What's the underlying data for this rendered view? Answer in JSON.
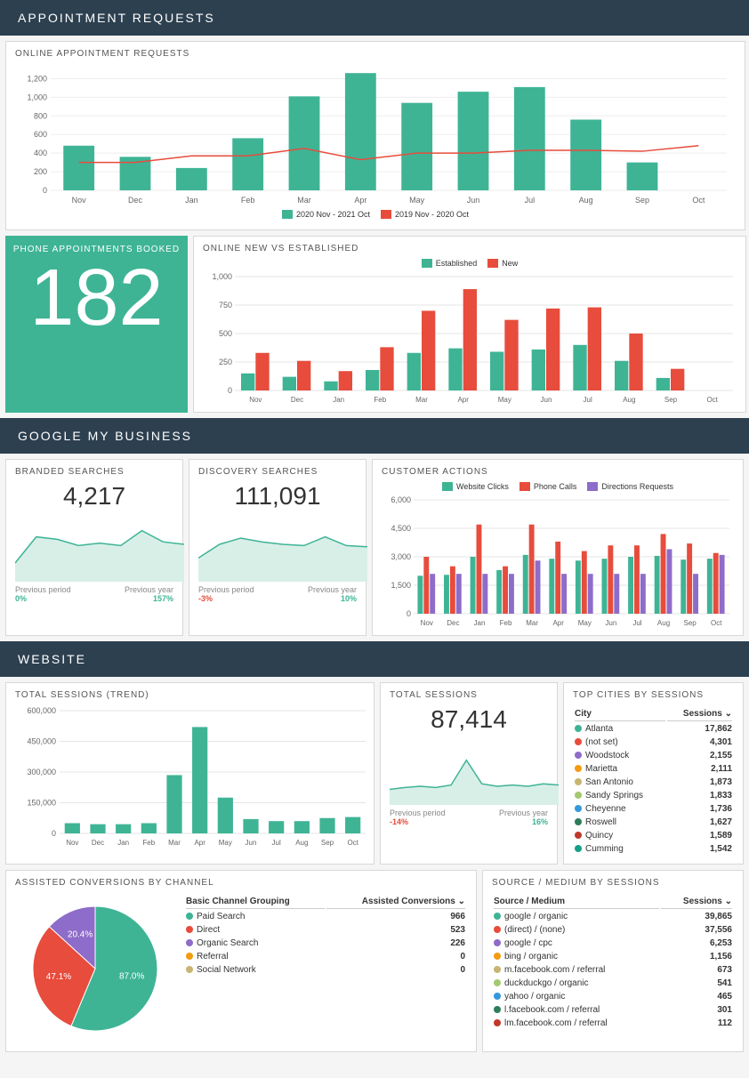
{
  "sections": {
    "appointments": "APPOINTMENT REQUESTS",
    "gmb": "GOOGLE MY BUSINESS",
    "website": "WEBSITE"
  },
  "online_requests": {
    "title": "ONLINE APPOINTMENT REQUESTS",
    "type": "bar+line",
    "categories": [
      "Nov",
      "Dec",
      "Jan",
      "Feb",
      "Mar",
      "Apr",
      "May",
      "Jun",
      "Jul",
      "Aug",
      "Sep",
      "Oct"
    ],
    "bars": [
      480,
      360,
      240,
      560,
      1010,
      1260,
      940,
      1060,
      1110,
      760,
      300,
      0
    ],
    "line": [
      300,
      300,
      370,
      370,
      450,
      330,
      400,
      400,
      430,
      430,
      420,
      480
    ],
    "ylim": [
      0,
      1300
    ],
    "yticks": [
      0,
      200,
      400,
      600,
      800,
      1000,
      1200
    ],
    "bar_color": "#3eb495",
    "line_color": "#e74c3c",
    "legend_bar": "2020 Nov - 2021 Oct",
    "legend_line": "2019 Nov - 2020 Oct"
  },
  "phone_booked": {
    "label": "PHONE APPOINTMENTS BOOKED",
    "value": "182"
  },
  "new_vs_est": {
    "title": "ONLINE NEW VS ESTABLISHED",
    "type": "grouped-bar",
    "categories": [
      "Nov",
      "Dec",
      "Jan",
      "Feb",
      "Mar",
      "Apr",
      "May",
      "Jun",
      "Jul",
      "Aug",
      "Sep",
      "Oct"
    ],
    "established": [
      150,
      120,
      80,
      180,
      330,
      370,
      340,
      360,
      400,
      260,
      110,
      0
    ],
    "new": [
      330,
      260,
      170,
      380,
      700,
      890,
      620,
      720,
      730,
      500,
      190,
      0
    ],
    "ylim": [
      0,
      1000
    ],
    "yticks": [
      0,
      250,
      500,
      750,
      1000
    ],
    "color_est": "#3eb495",
    "color_new": "#e74c3c",
    "legend_est": "Established",
    "legend_new": "New",
    "grid_color": "#e5e5e5"
  },
  "branded": {
    "title": "BRANDED SEARCHES",
    "value": "4,217",
    "spark": [
      30,
      72,
      68,
      58,
      62,
      58,
      82,
      64,
      60
    ],
    "fill": "#d8efe8",
    "stroke": "#3eb495",
    "pp_label": "Previous period",
    "pp_val": "0%",
    "pp_sign": "pos",
    "py_label": "Previous year",
    "py_val": "157%",
    "py_sign": "pos"
  },
  "discovery": {
    "title": "DISCOVERY SEARCHES",
    "value": "111,091",
    "spark": [
      38,
      60,
      70,
      64,
      60,
      58,
      72,
      58,
      56
    ],
    "fill": "#d8efe8",
    "stroke": "#3eb495",
    "pp_label": "Previous period",
    "pp_val": "-3%",
    "pp_sign": "neg",
    "py_label": "Previous year",
    "py_val": "10%",
    "py_sign": "pos"
  },
  "customer_actions": {
    "title": "CUSTOMER ACTIONS",
    "type": "grouped-bar",
    "categories": [
      "Nov",
      "Dec",
      "Jan",
      "Feb",
      "Mar",
      "Apr",
      "May",
      "Jun",
      "Jul",
      "Aug",
      "Sep",
      "Oct"
    ],
    "series": [
      {
        "name": "Website Clicks",
        "color": "#3eb495",
        "data": [
          2000,
          2050,
          3000,
          2300,
          3100,
          2900,
          2800,
          2900,
          3000,
          3050,
          2850,
          2900
        ]
      },
      {
        "name": "Phone Calls",
        "color": "#e74c3c",
        "data": [
          3000,
          2500,
          4700,
          2500,
          4700,
          3800,
          3300,
          3600,
          3600,
          4200,
          3700,
          3200
        ]
      },
      {
        "name": "Directions Requests",
        "color": "#8e6cc9",
        "data": [
          2100,
          2100,
          2100,
          2100,
          2800,
          2100,
          2100,
          2100,
          2100,
          3400,
          2100,
          3100
        ]
      }
    ],
    "ylim": [
      0,
      6000
    ],
    "yticks": [
      0,
      1500,
      3000,
      4500,
      6000
    ],
    "grid_color": "#e5e5e5"
  },
  "sessions_trend": {
    "title": "TOTAL SESSIONS (TREND)",
    "type": "bar",
    "categories": [
      "Nov",
      "Dec",
      "Jan",
      "Feb",
      "Mar",
      "Apr",
      "May",
      "Jun",
      "Jul",
      "Aug",
      "Sep",
      "Oct"
    ],
    "values": [
      50000,
      45000,
      45000,
      50000,
      285000,
      520000,
      175000,
      70000,
      60000,
      60000,
      75000,
      80000
    ],
    "ylim": [
      0,
      600000
    ],
    "yticks": [
      0,
      150000,
      300000,
      450000,
      600000
    ],
    "bar_color": "#3eb495",
    "grid_color": "#e5e5e5"
  },
  "sessions_total": {
    "title": "TOTAL SESSIONS",
    "value": "87,414",
    "spark": [
      25,
      28,
      30,
      28,
      32,
      72,
      34,
      30,
      32,
      30,
      34,
      32
    ],
    "fill": "#d8efe8",
    "stroke": "#3eb495",
    "pp_label": "Previous period",
    "pp_val": "-14%",
    "pp_sign": "neg",
    "py_label": "Previous year",
    "py_val": "16%",
    "py_sign": "pos"
  },
  "top_cities": {
    "title": "TOP CITIES BY SESSIONS",
    "col1": "City",
    "col2": "Sessions",
    "rows": [
      {
        "dot": "#3eb495",
        "city": "Atlanta",
        "val": "17,862"
      },
      {
        "dot": "#e74c3c",
        "city": "(not set)",
        "val": "4,301"
      },
      {
        "dot": "#8e6cc9",
        "city": "Woodstock",
        "val": "2,155"
      },
      {
        "dot": "#f39c12",
        "city": "Marietta",
        "val": "2,111"
      },
      {
        "dot": "#c9b572",
        "city": "San Antonio",
        "val": "1,873"
      },
      {
        "dot": "#a4c96f",
        "city": "Sandy Springs",
        "val": "1,833"
      },
      {
        "dot": "#3498db",
        "city": "Cheyenne",
        "val": "1,736"
      },
      {
        "dot": "#2e7d5a",
        "city": "Roswell",
        "val": "1,627"
      },
      {
        "dot": "#c0392b",
        "city": "Quincy",
        "val": "1,589"
      },
      {
        "dot": "#16a085",
        "city": "Cumming",
        "val": "1,542"
      }
    ]
  },
  "assisted": {
    "title": "ASSISTED CONVERSIONS BY CHANNEL",
    "col1": "Basic Channel Grouping",
    "col2": "Assisted Conversions",
    "pie": [
      {
        "label": "Paid Search",
        "color": "#3eb495",
        "pct": 87.0,
        "val": "966",
        "pct_label": "87.0%"
      },
      {
        "label": "Direct",
        "color": "#e74c3c",
        "pct": 47.1,
        "val": "523",
        "pct_label": "47.1%"
      },
      {
        "label": "Organic Search",
        "color": "#8e6cc9",
        "pct": 20.4,
        "val": "226",
        "pct_label": "20.4%"
      },
      {
        "label": "Referral",
        "color": "#f39c12",
        "pct": 0,
        "val": "0"
      },
      {
        "label": "Social Network",
        "color": "#c9b572",
        "pct": 0,
        "val": "0"
      }
    ]
  },
  "source_medium": {
    "title": "SOURCE / MEDIUM BY SESSIONS",
    "col1": "Source / Medium",
    "col2": "Sessions",
    "rows": [
      {
        "dot": "#3eb495",
        "src": "google / organic",
        "val": "39,865"
      },
      {
        "dot": "#e74c3c",
        "src": "(direct) / (none)",
        "val": "37,556"
      },
      {
        "dot": "#8e6cc9",
        "src": "google / cpc",
        "val": "6,253"
      },
      {
        "dot": "#f39c12",
        "src": "bing / organic",
        "val": "1,156"
      },
      {
        "dot": "#c9b572",
        "src": "m.facebook.com / referral",
        "val": "673"
      },
      {
        "dot": "#a4c96f",
        "src": "duckduckgo / organic",
        "val": "541"
      },
      {
        "dot": "#3498db",
        "src": "yahoo / organic",
        "val": "465"
      },
      {
        "dot": "#2e7d5a",
        "src": "l.facebook.com / referral",
        "val": "301"
      },
      {
        "dot": "#c0392b",
        "src": "lm.facebook.com / referral",
        "val": "112"
      }
    ]
  }
}
